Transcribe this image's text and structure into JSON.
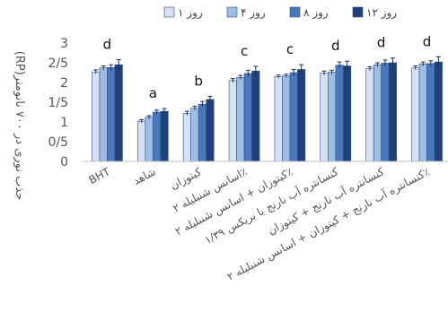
{
  "chart_data": {
    "type": "bar",
    "ylabel": "جذب نوری در ۷۰۰ نانومتر(RP)",
    "ylim": [
      0,
      3
    ],
    "yticks": [
      "0",
      "0/5",
      "1",
      "1/5",
      "2",
      "2/5",
      "3"
    ],
    "legend_placement": "top",
    "grid": false,
    "categories": [
      "BHT",
      "شاهد",
      "کیتوزان",
      "اسانس شنبلیله ۲٪",
      "کیتوزان + اسانس شنبلیله ۲٪",
      "کنسانتره آب نارنج با بریکس ۱/۳۹",
      "کنسانتره آب نارنج + کیتوزان",
      "کنسانتره آب نارنج + کیتوزان + اسانس شنبلیله ۲٪"
    ],
    "series": [
      {
        "name": "روز ۱",
        "color": "#d6e2f3",
        "values": [
          2.27,
          1.02,
          1.22,
          2.05,
          2.15,
          2.24,
          2.35,
          2.37
        ],
        "errors": [
          0.05,
          0.04,
          0.05,
          0.05,
          0.04,
          0.05,
          0.05,
          0.05
        ]
      },
      {
        "name": "روز ۴",
        "color": "#9dbde2",
        "values": [
          2.37,
          1.12,
          1.35,
          2.13,
          2.17,
          2.26,
          2.45,
          2.47
        ],
        "errors": [
          0.05,
          0.04,
          0.05,
          0.05,
          0.04,
          0.05,
          0.05,
          0.05
        ]
      },
      {
        "name": "روز ۸",
        "color": "#4a78bd",
        "values": [
          2.38,
          1.25,
          1.45,
          2.23,
          2.25,
          2.44,
          2.49,
          2.48
        ],
        "errors": [
          0.07,
          0.05,
          0.07,
          0.08,
          0.08,
          0.08,
          0.08,
          0.07
        ]
      },
      {
        "name": "روز ۱۲",
        "color": "#20407a",
        "values": [
          2.45,
          1.27,
          1.57,
          2.29,
          2.33,
          2.42,
          2.5,
          2.52
        ],
        "errors": [
          0.13,
          0.07,
          0.08,
          0.12,
          0.12,
          0.12,
          0.12,
          0.13
        ]
      }
    ],
    "annotations": [
      "d",
      "a",
      "b",
      "c",
      "c",
      "d",
      "d",
      "d"
    ]
  }
}
